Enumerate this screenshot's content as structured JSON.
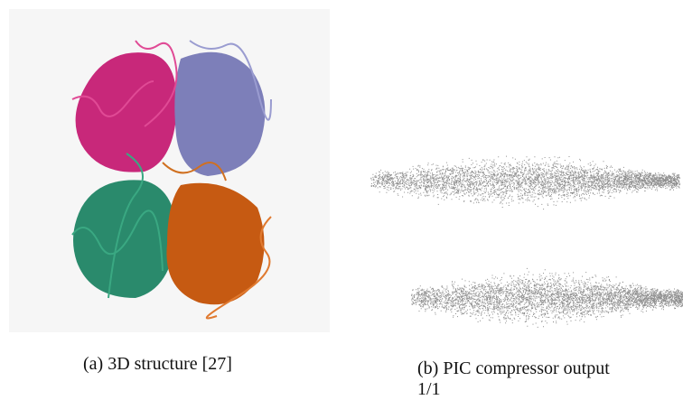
{
  "figure": {
    "panels": [
      {
        "caption": "(a) 3D structure [27]"
      },
      {
        "caption": "(b) PIC compressor output"
      }
    ],
    "page_number": "1/1"
  }
}
